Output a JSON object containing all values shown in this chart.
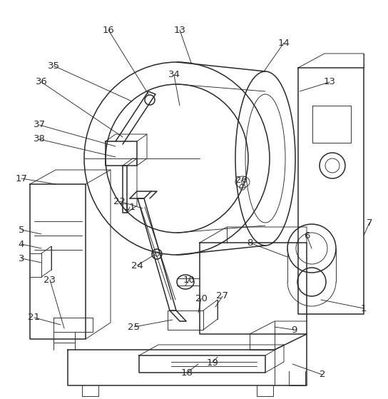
{
  "line_color": "#2a2a2a",
  "line_width": 1.1,
  "thin_line": 0.65,
  "label_fontsize": 9.5,
  "fig_w": 5.44,
  "fig_h": 5.59,
  "dpi": 100
}
